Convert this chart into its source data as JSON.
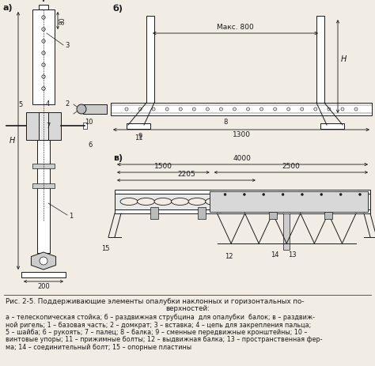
{
  "title_line1": "Рис. 2-5. Поддерживающие элементы опалубки наклонных и горизонтальных по-",
  "title_line2": "верхностей:",
  "caption_line1": "а – телескопическая стойка; б – раздвижная струбцина  для опалубки  балок; в – раздвиж-",
  "caption_line2": "ной ригель; 1 – базовая часть; 2 – домкрат; 3 – вставка; 4 – цепь для закрепления пальца;",
  "caption_line3": "5 – шайба; 6 – рукоять; 7 – палец; 8 – балка; 9 – сменные передвижные кронштейны; 10 –",
  "caption_line4": "винтовые упоры; 11 – прижимные болты; 12 – выдвижная балка; 13 – пространственная фер-",
  "caption_line5": "ма; 14 – соединительный болт; 15 – опорные пластины",
  "bg_color": "#f2ede4",
  "label_a": "а)",
  "label_b": "б)",
  "label_v": "в)",
  "fig_width": 4.74,
  "fig_height": 4.63,
  "dpi": 100
}
